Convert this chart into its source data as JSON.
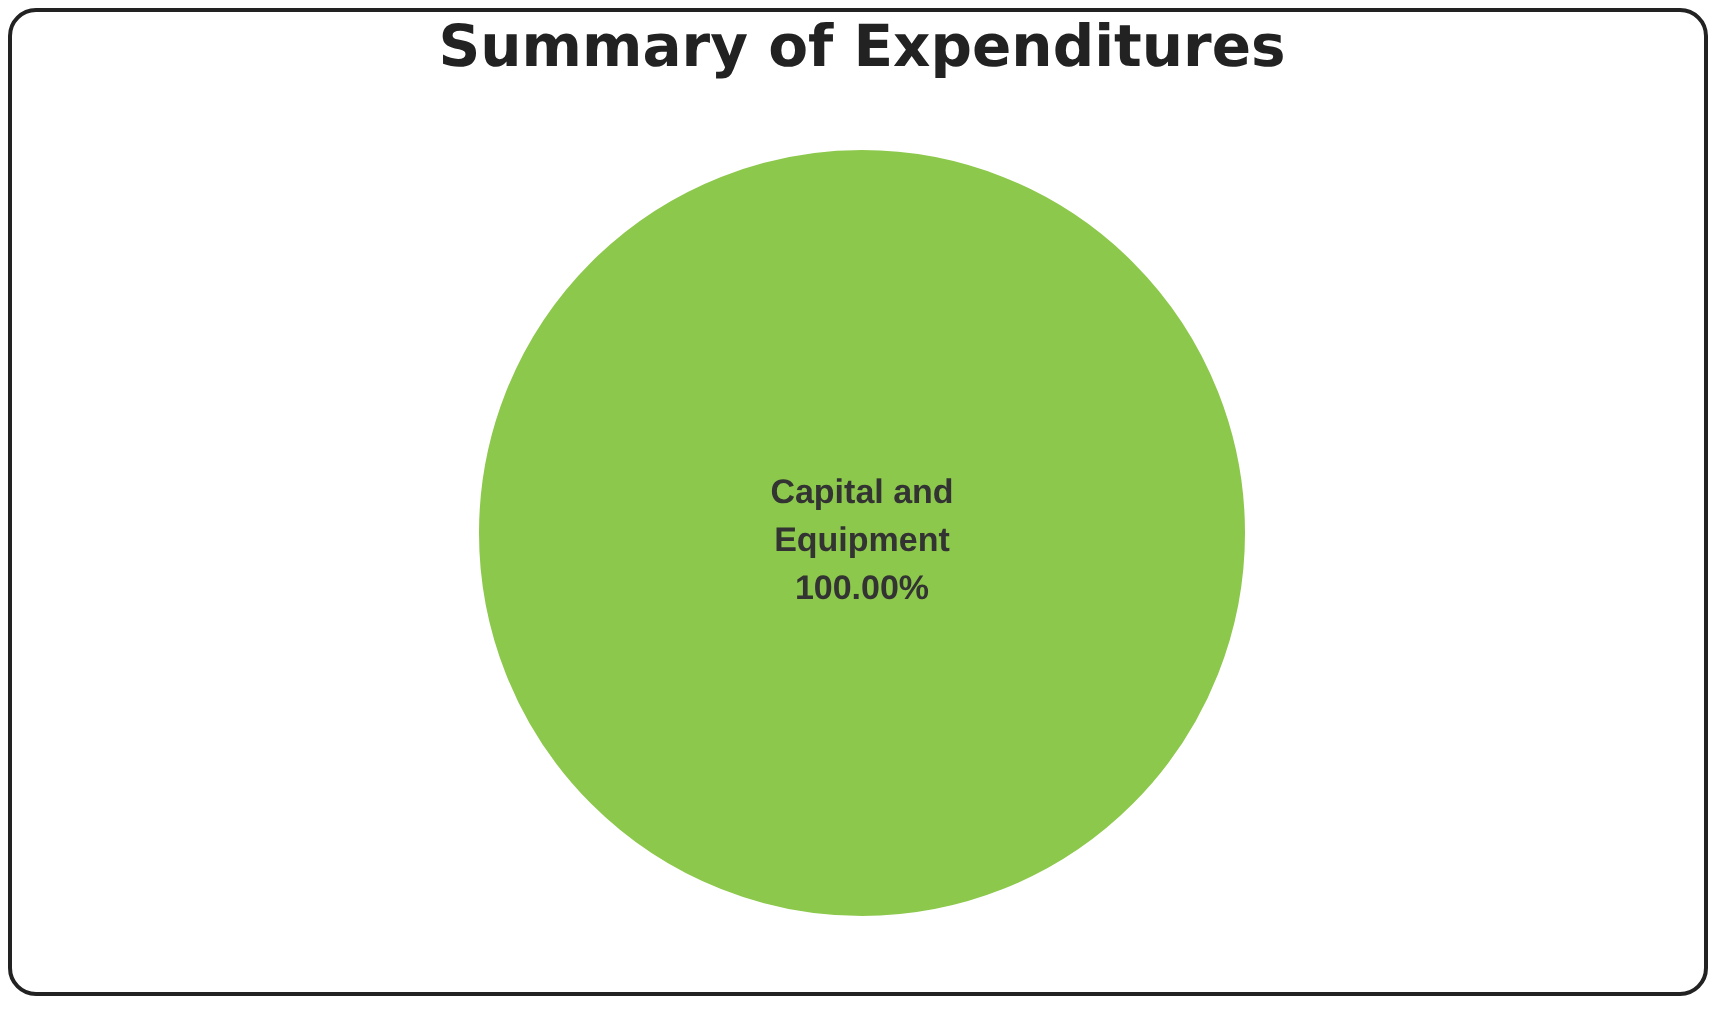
{
  "chart_data": {
    "type": "pie",
    "title": "Summary of Expenditures",
    "categories": [
      "Capital and Equipment"
    ],
    "values": [
      100
    ],
    "colors": [
      "#8cc84b"
    ],
    "value_labels": [
      "100.00%"
    ],
    "legend": false
  }
}
